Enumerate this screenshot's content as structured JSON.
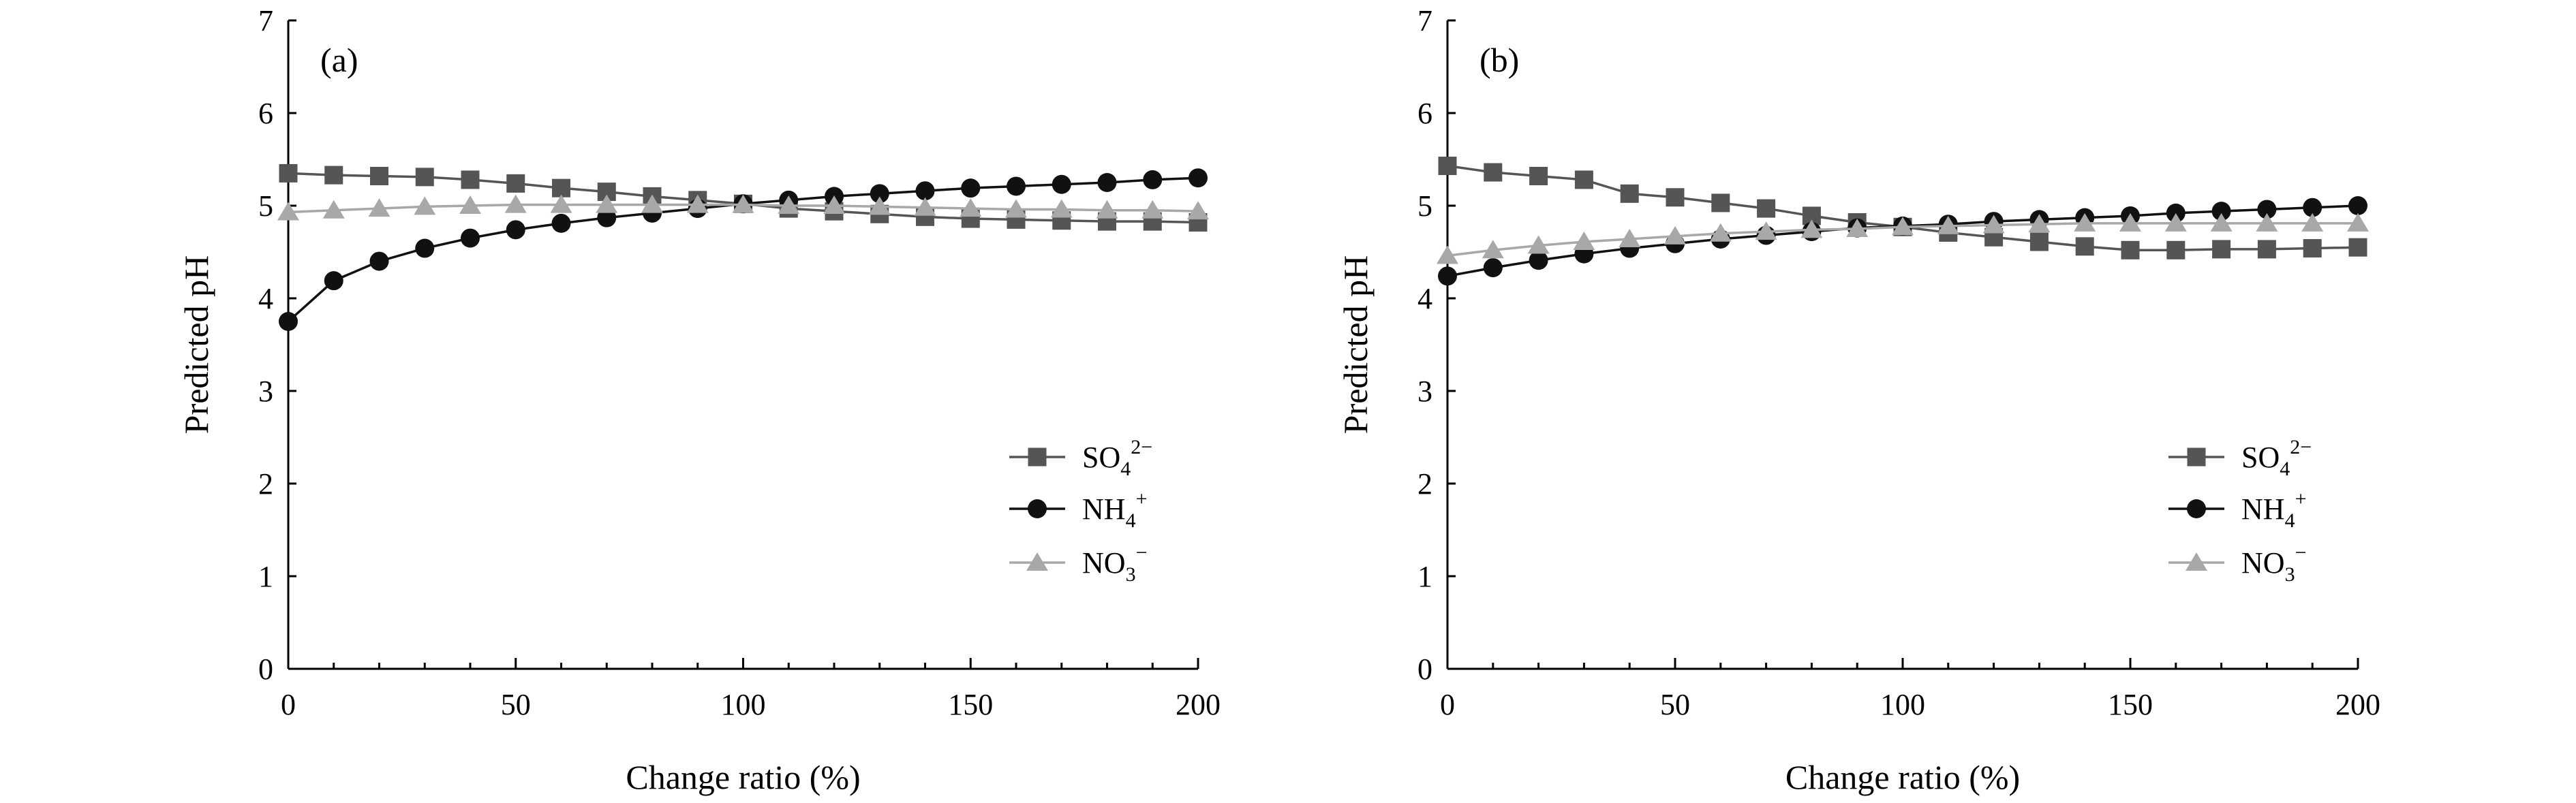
{
  "chart_data": [
    {
      "type": "line",
      "panel_label": "(a)",
      "xlabel": "Change ratio (%)",
      "ylabel": "Predicted pH",
      "xlim": [
        0,
        200
      ],
      "ylim": [
        0,
        7
      ],
      "xticks": [
        0,
        50,
        100,
        150,
        200
      ],
      "yticks": [
        0,
        1,
        2,
        3,
        4,
        5,
        6,
        7
      ],
      "legend_position": "lower-right",
      "x": [
        0,
        10,
        20,
        30,
        40,
        50,
        60,
        70,
        80,
        90,
        100,
        110,
        120,
        130,
        140,
        150,
        160,
        170,
        180,
        190,
        200
      ],
      "series": [
        {
          "name": "SO4 2-",
          "label_base": "SO",
          "label_sub": "4",
          "label_sup": "2−",
          "marker": "square",
          "color": "#555555",
          "values": [
            5.35,
            5.33,
            5.32,
            5.31,
            5.28,
            5.24,
            5.19,
            5.15,
            5.1,
            5.06,
            5.02,
            4.97,
            4.94,
            4.91,
            4.88,
            4.86,
            4.85,
            4.84,
            4.83,
            4.83,
            4.82
          ]
        },
        {
          "name": "NH4 +",
          "label_base": "NH",
          "label_sub": "4",
          "label_sup": "+",
          "marker": "circle",
          "color": "#111111",
          "values": [
            3.75,
            4.19,
            4.4,
            4.54,
            4.65,
            4.74,
            4.81,
            4.87,
            4.92,
            4.97,
            5.02,
            5.06,
            5.1,
            5.13,
            5.16,
            5.19,
            5.21,
            5.23,
            5.25,
            5.28,
            5.3
          ]
        },
        {
          "name": "NO3 -",
          "label_base": "NO",
          "label_sub": "3",
          "label_sup": "−",
          "marker": "triangle",
          "color": "#a8a8a8",
          "values": [
            4.93,
            4.95,
            4.97,
            4.99,
            5.0,
            5.01,
            5.01,
            5.01,
            5.01,
            5.01,
            5.01,
            5.0,
            5.0,
            4.99,
            4.98,
            4.97,
            4.96,
            4.96,
            4.95,
            4.95,
            4.94
          ]
        }
      ]
    },
    {
      "type": "line",
      "panel_label": "(b)",
      "xlabel": "Change ratio (%)",
      "ylabel": "Predicted pH",
      "xlim": [
        0,
        200
      ],
      "ylim": [
        0,
        7
      ],
      "xticks": [
        0,
        50,
        100,
        150,
        200
      ],
      "yticks": [
        0,
        1,
        2,
        3,
        4,
        5,
        6,
        7
      ],
      "legend_position": "lower-right",
      "x": [
        0,
        10,
        20,
        30,
        40,
        50,
        60,
        70,
        80,
        90,
        100,
        110,
        120,
        130,
        140,
        150,
        160,
        170,
        180,
        190,
        200
      ],
      "series": [
        {
          "name": "SO4 2-",
          "label_base": "SO",
          "label_sub": "4",
          "label_sup": "2−",
          "marker": "square",
          "color": "#555555",
          "values": [
            5.43,
            5.36,
            5.32,
            5.28,
            5.13,
            5.09,
            5.03,
            4.97,
            4.89,
            4.82,
            4.77,
            4.71,
            4.66,
            4.61,
            4.56,
            4.52,
            4.52,
            4.53,
            4.53,
            4.54,
            4.55
          ]
        },
        {
          "name": "NH4 +",
          "label_base": "NH",
          "label_sub": "4",
          "label_sup": "+",
          "marker": "circle",
          "color": "#111111",
          "values": [
            4.24,
            4.33,
            4.41,
            4.48,
            4.54,
            4.59,
            4.64,
            4.68,
            4.72,
            4.76,
            4.78,
            4.8,
            4.83,
            4.85,
            4.87,
            4.89,
            4.92,
            4.94,
            4.96,
            4.98,
            5.0
          ]
        },
        {
          "name": "NO3 -",
          "label_base": "NO",
          "label_sub": "3",
          "label_sup": "−",
          "marker": "triangle",
          "color": "#a8a8a8",
          "values": [
            4.46,
            4.52,
            4.57,
            4.61,
            4.64,
            4.67,
            4.7,
            4.72,
            4.74,
            4.75,
            4.77,
            4.78,
            4.79,
            4.8,
            4.81,
            4.81,
            4.81,
            4.81,
            4.81,
            4.81,
            4.81
          ]
        }
      ]
    }
  ]
}
